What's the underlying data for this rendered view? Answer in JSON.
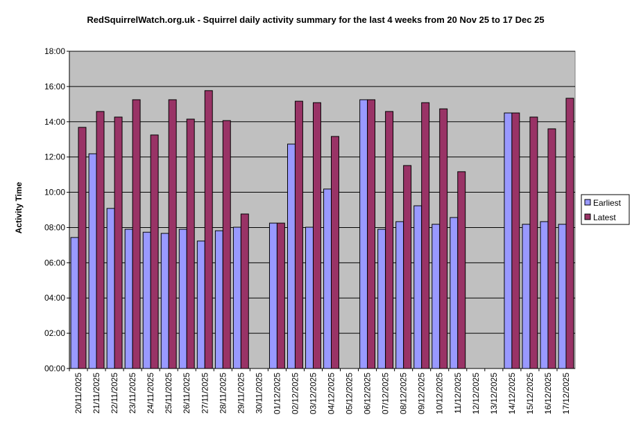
{
  "chart_data": {
    "type": "bar",
    "title": "RedSquirrelWatch.org.uk - Squirrel daily activity summary for the last 4 weeks from 20 Nov 25 to 17 Dec 25",
    "xlabel": "",
    "ylabel": "Activity Time",
    "ylim": [
      "00:00",
      "18:00"
    ],
    "yticks": [
      "00:00",
      "02:00",
      "04:00",
      "06:00",
      "08:00",
      "10:00",
      "12:00",
      "14:00",
      "16:00",
      "18:00"
    ],
    "grid": true,
    "legend_position": "right",
    "categories": [
      "20/11/2025",
      "21/11/2025",
      "22/11/2025",
      "23/11/2025",
      "24/11/2025",
      "25/11/2025",
      "26/11/2025",
      "27/11/2025",
      "28/11/2025",
      "29/11/2025",
      "30/11/2025",
      "01/12/2025",
      "02/12/2025",
      "03/12/2025",
      "04/12/2025",
      "05/12/2025",
      "06/12/2025",
      "07/12/2025",
      "08/12/2025",
      "09/12/2025",
      "10/12/2025",
      "11/12/2025",
      "12/12/2025",
      "13/12/2025",
      "14/12/2025",
      "15/12/2025",
      "16/12/2025",
      "17/12/2025"
    ],
    "series": [
      {
        "name": "Earliest",
        "color": "#9999ff",
        "values": [
          "07:26",
          "12:11",
          "09:05",
          "07:54",
          "07:44",
          "07:40",
          "07:54",
          "07:14",
          "07:49",
          "08:01",
          null,
          "08:15",
          "12:44",
          "08:01",
          "10:11",
          null,
          "15:15",
          "07:54",
          "08:20",
          "09:14",
          "08:11",
          "08:34",
          null,
          null,
          "14:30",
          "08:11",
          "08:20",
          "08:11"
        ]
      },
      {
        "name": "Latest",
        "color": "#993366",
        "values": [
          "13:41",
          "14:35",
          "14:16",
          "15:15",
          "13:15",
          "15:15",
          "14:09",
          "15:46",
          "14:04",
          "08:46",
          null,
          "08:15",
          "15:10",
          "15:05",
          "13:10",
          null,
          "15:15",
          "14:35",
          "11:31",
          "15:05",
          "14:44",
          "11:10",
          null,
          null,
          "14:30",
          "14:16",
          "13:36",
          "15:20"
        ]
      }
    ]
  }
}
